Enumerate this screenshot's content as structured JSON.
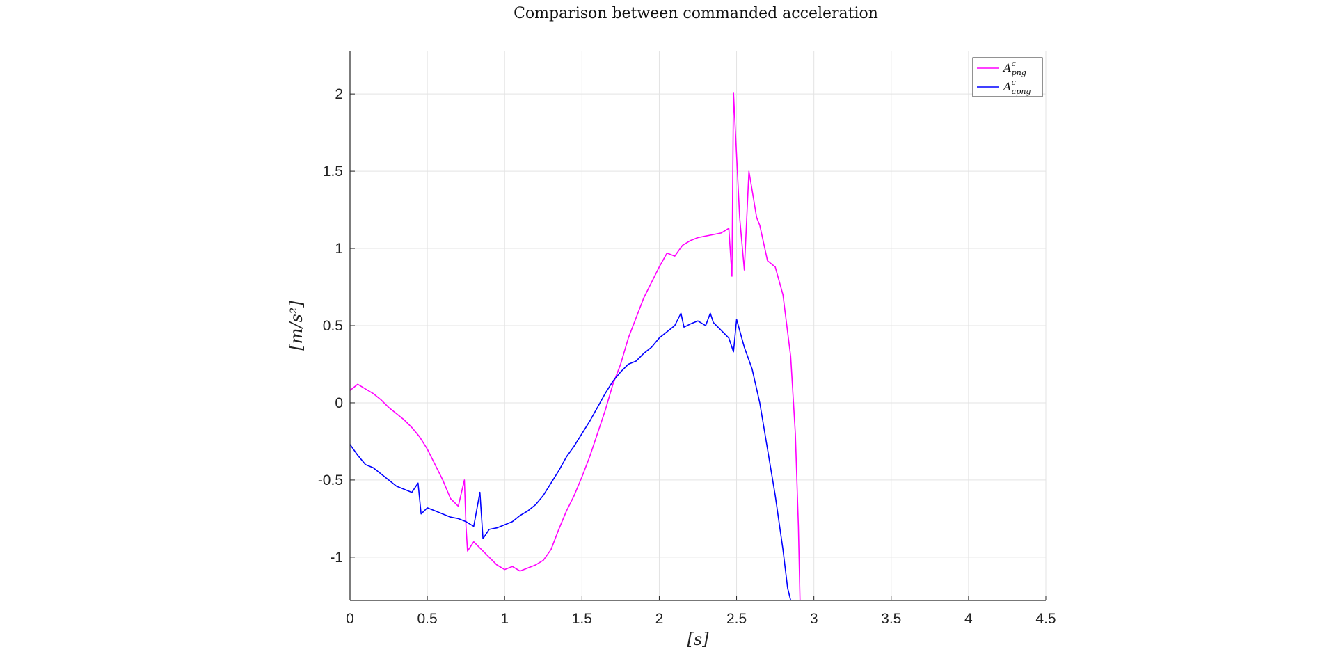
{
  "chart_data": {
    "type": "line",
    "title": "Comparison between commanded acceleration",
    "xlabel": "[s]",
    "ylabel": "[m/s²]",
    "xlim": [
      0,
      4.5
    ],
    "ylim": [
      -1.28,
      2.28
    ],
    "xticks": [
      "0",
      "0.5",
      "1",
      "1.5",
      "2",
      "2.5",
      "3",
      "3.5",
      "4",
      "4.5"
    ],
    "yticks": [
      "2",
      "1.5",
      "1",
      "0.5",
      "0",
      "-0.5",
      "-1"
    ],
    "grid": true,
    "legend_position": "top-right",
    "series": [
      {
        "name": "A^c_png",
        "legend_main": "A",
        "legend_sup": "c",
        "legend_sub": "png",
        "color": "#ff00ff",
        "x": [
          0,
          0.05,
          0.1,
          0.15,
          0.2,
          0.25,
          0.3,
          0.35,
          0.4,
          0.45,
          0.5,
          0.55,
          0.6,
          0.65,
          0.7,
          0.74,
          0.75,
          0.76,
          0.8,
          0.85,
          0.9,
          0.95,
          1.0,
          1.05,
          1.1,
          1.15,
          1.2,
          1.25,
          1.3,
          1.35,
          1.4,
          1.45,
          1.5,
          1.55,
          1.6,
          1.65,
          1.7,
          1.75,
          1.8,
          1.85,
          1.9,
          1.95,
          2.0,
          2.05,
          2.1,
          2.15,
          2.2,
          2.25,
          2.3,
          2.35,
          2.4,
          2.45,
          2.47,
          2.48,
          2.5,
          2.52,
          2.55,
          2.58,
          2.6,
          2.63,
          2.65,
          2.7,
          2.75,
          2.8,
          2.85,
          2.88,
          2.9,
          2.91
        ],
        "y": [
          0.08,
          0.12,
          0.09,
          0.06,
          0.02,
          -0.03,
          -0.07,
          -0.11,
          -0.16,
          -0.22,
          -0.3,
          -0.4,
          -0.5,
          -0.62,
          -0.67,
          -0.5,
          -0.8,
          -0.96,
          -0.9,
          -0.95,
          -1.0,
          -1.05,
          -1.08,
          -1.06,
          -1.09,
          -1.07,
          -1.05,
          -1.02,
          -0.95,
          -0.82,
          -0.7,
          -0.6,
          -0.48,
          -0.35,
          -0.2,
          -0.05,
          0.12,
          0.25,
          0.42,
          0.55,
          0.68,
          0.78,
          0.88,
          0.97,
          0.95,
          1.02,
          1.05,
          1.07,
          1.08,
          1.09,
          1.1,
          1.13,
          0.82,
          2.01,
          1.6,
          1.2,
          0.86,
          1.5,
          1.38,
          1.2,
          1.15,
          0.92,
          0.88,
          0.7,
          0.3,
          -0.2,
          -0.8,
          -1.28
        ]
      },
      {
        "name": "A^c_apng",
        "legend_main": "A",
        "legend_sup": "c",
        "legend_sub": "apng",
        "color": "#0000ff",
        "x": [
          0,
          0.05,
          0.1,
          0.15,
          0.2,
          0.25,
          0.3,
          0.35,
          0.4,
          0.44,
          0.46,
          0.5,
          0.55,
          0.6,
          0.65,
          0.7,
          0.75,
          0.8,
          0.84,
          0.86,
          0.9,
          0.95,
          1.0,
          1.05,
          1.1,
          1.15,
          1.2,
          1.25,
          1.3,
          1.35,
          1.4,
          1.45,
          1.5,
          1.55,
          1.6,
          1.65,
          1.7,
          1.75,
          1.8,
          1.85,
          1.9,
          1.95,
          2.0,
          2.05,
          2.1,
          2.14,
          2.16,
          2.2,
          2.25,
          2.3,
          2.33,
          2.35,
          2.4,
          2.45,
          2.48,
          2.5,
          2.55,
          2.6,
          2.65,
          2.7,
          2.75,
          2.8,
          2.83,
          2.85
        ],
        "y": [
          -0.27,
          -0.34,
          -0.4,
          -0.42,
          -0.46,
          -0.5,
          -0.54,
          -0.56,
          -0.58,
          -0.52,
          -0.72,
          -0.68,
          -0.7,
          -0.72,
          -0.74,
          -0.75,
          -0.77,
          -0.8,
          -0.58,
          -0.88,
          -0.82,
          -0.81,
          -0.79,
          -0.77,
          -0.73,
          -0.7,
          -0.66,
          -0.6,
          -0.52,
          -0.44,
          -0.35,
          -0.28,
          -0.2,
          -0.12,
          -0.03,
          0.06,
          0.14,
          0.2,
          0.25,
          0.27,
          0.32,
          0.36,
          0.42,
          0.46,
          0.5,
          0.58,
          0.49,
          0.51,
          0.53,
          0.5,
          0.58,
          0.52,
          0.47,
          0.42,
          0.33,
          0.54,
          0.36,
          0.22,
          0.0,
          -0.3,
          -0.6,
          -0.95,
          -1.2,
          -1.28
        ]
      }
    ]
  }
}
